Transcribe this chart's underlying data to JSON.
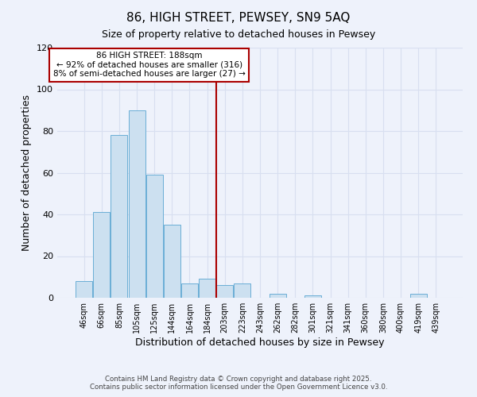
{
  "title": "86, HIGH STREET, PEWSEY, SN9 5AQ",
  "subtitle": "Size of property relative to detached houses in Pewsey",
  "xlabel": "Distribution of detached houses by size in Pewsey",
  "ylabel": "Number of detached properties",
  "bar_color": "#cce0f0",
  "bar_edge_color": "#6aaed6",
  "background_color": "#eef2fb",
  "grid_color": "#d8dff0",
  "categories": [
    "46sqm",
    "66sqm",
    "85sqm",
    "105sqm",
    "125sqm",
    "144sqm",
    "164sqm",
    "184sqm",
    "203sqm",
    "223sqm",
    "243sqm",
    "262sqm",
    "282sqm",
    "301sqm",
    "321sqm",
    "341sqm",
    "360sqm",
    "380sqm",
    "400sqm",
    "419sqm",
    "439sqm"
  ],
  "values": [
    8,
    41,
    78,
    90,
    59,
    35,
    7,
    9,
    6,
    7,
    0,
    2,
    0,
    1,
    0,
    0,
    0,
    0,
    0,
    2,
    0
  ],
  "vline_index": 7.5,
  "vline_color": "#aa0000",
  "annotation_title": "86 HIGH STREET: 188sqm",
  "annotation_line1": "← 92% of detached houses are smaller (316)",
  "annotation_line2": "8% of semi-detached houses are larger (27) →",
  "annotation_box_color": "#ffffff",
  "annotation_box_edge_color": "#aa0000",
  "ylim": [
    0,
    120
  ],
  "yticks": [
    0,
    20,
    40,
    60,
    80,
    100,
    120
  ],
  "footer1": "Contains HM Land Registry data © Crown copyright and database right 2025.",
  "footer2": "Contains public sector information licensed under the Open Government Licence v3.0."
}
